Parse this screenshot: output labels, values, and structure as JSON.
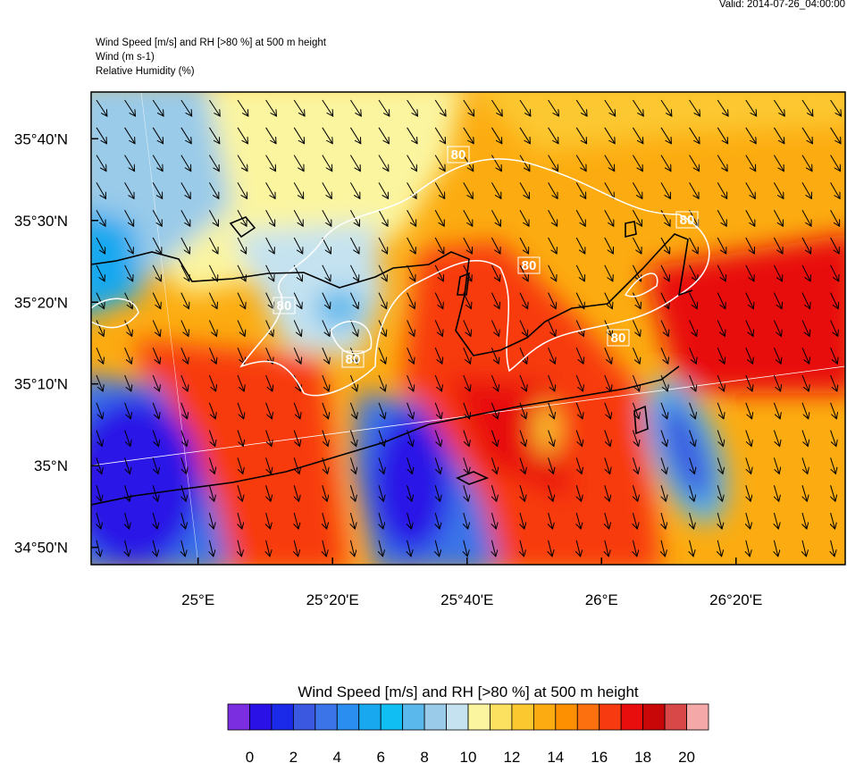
{
  "valid": "Valid: 2014-07-26_04:00:00",
  "header": {
    "lines": [
      "Wind Speed [m/s] and RH [>80 %] at 500 m height",
      "Wind   (m s-1)",
      "Relative Humidity   (%)"
    ]
  },
  "map": {
    "xlim": [
      24.735,
      26.604
    ],
    "ylim": [
      34.798,
      35.762
    ],
    "xticks": [
      {
        "value": 25,
        "label": "25°E"
      },
      {
        "value": 25.3333,
        "label": "25°20'E"
      },
      {
        "value": 25.6667,
        "label": "25°40'E"
      },
      {
        "value": 26,
        "label": "26°E"
      },
      {
        "value": 26.3333,
        "label": "26°20'E"
      }
    ],
    "yticks": [
      {
        "value": 34.8333,
        "label": "34°50'N"
      },
      {
        "value": 35,
        "label": "35°N"
      },
      {
        "value": 35.1667,
        "label": "35°10'N"
      },
      {
        "value": 35.3333,
        "label": "35°20'N"
      },
      {
        "value": 35.5,
        "label": "35°30'N"
      },
      {
        "value": 35.6667,
        "label": "35°40'N"
      }
    ],
    "contour_labels": [
      80,
      80,
      80,
      80,
      80,
      80
    ]
  },
  "colorbar": {
    "title": "Wind Speed [m/s] and RH [>80 %] at 500 m height",
    "range": [
      -1,
      21
    ],
    "colors": [
      "#7b2ee0",
      "#2a12e6",
      "#1a2ae8",
      "#3a58e0",
      "#3a74e8",
      "#2a8ef0",
      "#18a8f0",
      "#10bef4",
      "#5ab8ec",
      "#9acbe9",
      "#c4e2f0",
      "#fbf5a0",
      "#fce060",
      "#fcc830",
      "#fcac10",
      "#fc9000",
      "#fc7010",
      "#f83a10",
      "#e80e0e",
      "#c80808",
      "#d84848",
      "#f4a8a8"
    ],
    "ticks": [
      0,
      2,
      4,
      6,
      8,
      10,
      12,
      14,
      16,
      18,
      20
    ]
  }
}
